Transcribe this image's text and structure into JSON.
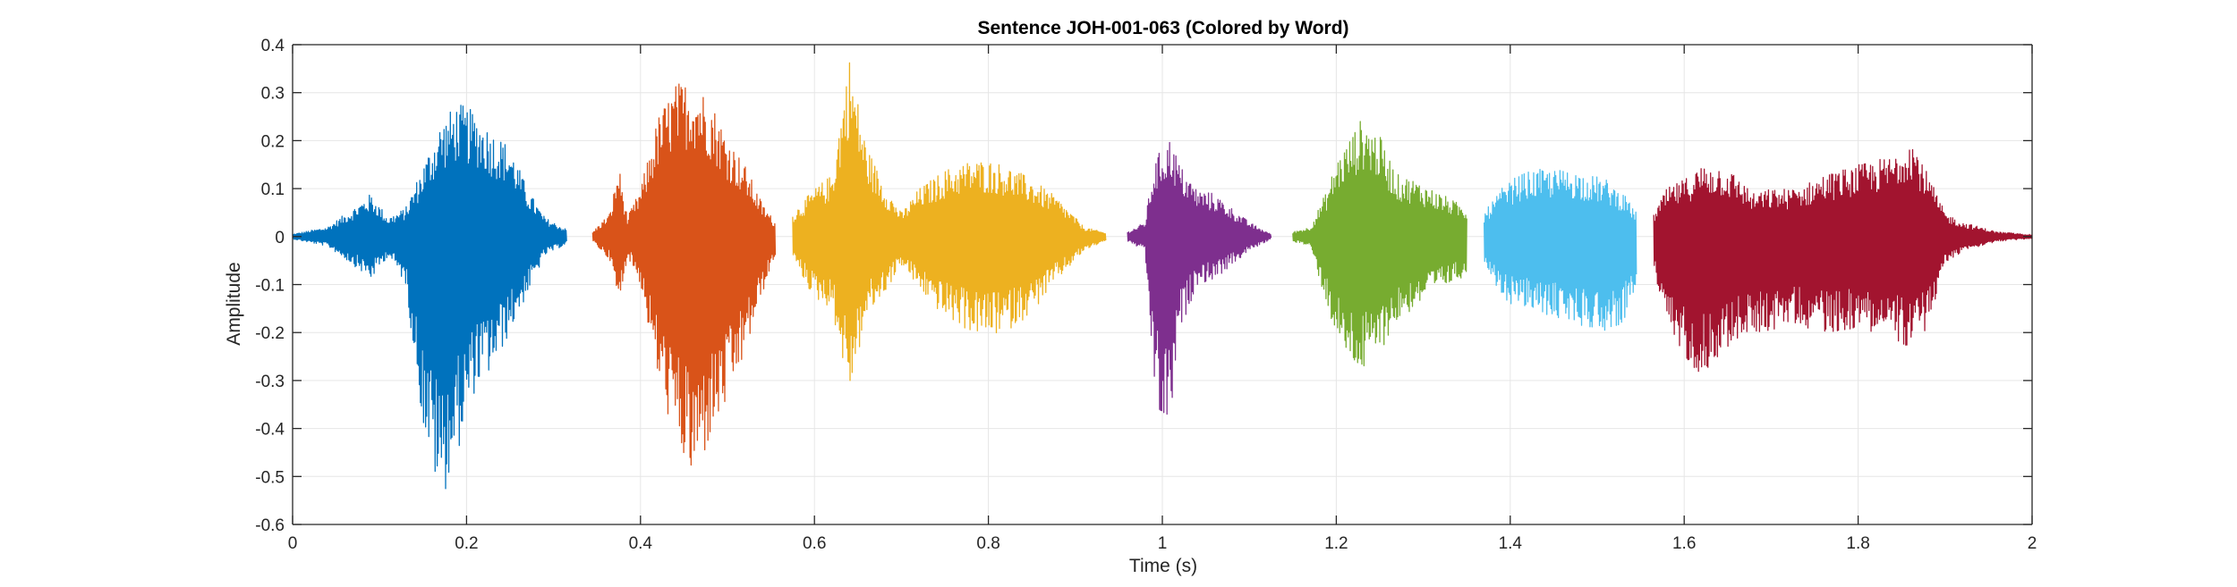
{
  "chart_data": {
    "type": "line",
    "title": "Sentence JOH-001-063 (Colored by Word)",
    "xlabel": "Time (s)",
    "ylabel": "Amplitude",
    "xlim": [
      0,
      2
    ],
    "ylim": [
      -0.6,
      0.4
    ],
    "xticks": [
      0,
      0.2,
      0.4,
      0.6,
      0.8,
      1,
      1.2,
      1.4,
      1.6,
      1.8,
      2
    ],
    "xtick_labels": [
      "0",
      "0.2",
      "0.4",
      "0.6",
      "0.8",
      "1",
      "1.2",
      "1.4",
      "1.6",
      "1.8",
      "2"
    ],
    "yticks": [
      -0.6,
      -0.5,
      -0.4,
      -0.3,
      -0.2,
      -0.1,
      0,
      0.1,
      0.2,
      0.3,
      0.4
    ],
    "ytick_labels": [
      "-0.6",
      "-0.5",
      "-0.4",
      "-0.3",
      "-0.2",
      "-0.1",
      "0",
      "0.1",
      "0.2",
      "0.3",
      "0.4"
    ],
    "grid": true,
    "legend": "none",
    "series": [
      {
        "color": "#0072BD",
        "x": [
          0.0,
          0.04,
          0.07,
          0.09,
          0.11,
          0.13,
          0.15,
          0.17,
          0.19,
          0.21,
          0.23,
          0.25,
          0.27,
          0.29,
          0.315
        ],
        "ymax": [
          0.005,
          0.02,
          0.06,
          0.09,
          0.04,
          0.06,
          0.15,
          0.24,
          0.28,
          0.26,
          0.22,
          0.19,
          0.1,
          0.04,
          0.015
        ],
        "ymin": [
          -0.005,
          -0.02,
          -0.06,
          -0.09,
          -0.04,
          -0.1,
          -0.4,
          -0.56,
          -0.45,
          -0.32,
          -0.28,
          -0.2,
          -0.12,
          -0.04,
          -0.015
        ]
      },
      {
        "color": "#D95319",
        "x": [
          0.345,
          0.365,
          0.375,
          0.385,
          0.4,
          0.42,
          0.44,
          0.46,
          0.48,
          0.5,
          0.52,
          0.54,
          0.555
        ],
        "ymax": [
          0.01,
          0.05,
          0.15,
          0.04,
          0.1,
          0.25,
          0.32,
          0.33,
          0.29,
          0.21,
          0.15,
          0.07,
          0.03
        ],
        "ymin": [
          -0.01,
          -0.05,
          -0.15,
          -0.04,
          -0.1,
          -0.3,
          -0.43,
          -0.52,
          -0.43,
          -0.35,
          -0.25,
          -0.12,
          -0.04
        ]
      },
      {
        "color": "#EDB120",
        "x": [
          0.575,
          0.6,
          0.62,
          0.64,
          0.66,
          0.68,
          0.7,
          0.72,
          0.75,
          0.78,
          0.8,
          0.82,
          0.85,
          0.88,
          0.91,
          0.935
        ],
        "ymax": [
          0.05,
          0.1,
          0.13,
          0.38,
          0.19,
          0.11,
          0.05,
          0.1,
          0.14,
          0.16,
          0.16,
          0.15,
          0.12,
          0.08,
          0.02,
          0.008
        ],
        "ymin": [
          -0.05,
          -0.13,
          -0.15,
          -0.33,
          -0.17,
          -0.12,
          -0.06,
          -0.11,
          -0.17,
          -0.2,
          -0.21,
          -0.2,
          -0.16,
          -0.09,
          -0.03,
          -0.008
        ]
      },
      {
        "color": "#7E2F8E",
        "x": [
          0.96,
          0.98,
          0.99,
          1.0,
          1.01,
          1.02,
          1.04,
          1.06,
          1.08,
          1.1,
          1.125
        ],
        "ymax": [
          0.01,
          0.03,
          0.15,
          0.19,
          0.21,
          0.15,
          0.1,
          0.09,
          0.06,
          0.03,
          0.005
        ],
        "ymin": [
          -0.01,
          -0.03,
          -0.3,
          -0.42,
          -0.38,
          -0.2,
          -0.1,
          -0.09,
          -0.06,
          -0.03,
          -0.005
        ]
      },
      {
        "color": "#77AC30",
        "x": [
          1.15,
          1.17,
          1.19,
          1.2,
          1.21,
          1.23,
          1.25,
          1.27,
          1.29,
          1.31,
          1.33,
          1.35
        ],
        "ymax": [
          0.01,
          0.02,
          0.1,
          0.16,
          0.19,
          0.25,
          0.21,
          0.13,
          0.12,
          0.1,
          0.08,
          0.06
        ],
        "ymin": [
          -0.01,
          -0.02,
          -0.15,
          -0.21,
          -0.25,
          -0.29,
          -0.24,
          -0.18,
          -0.15,
          -0.12,
          -0.1,
          -0.08
        ]
      },
      {
        "color": "#4DBEEE",
        "x": [
          1.37,
          1.39,
          1.41,
          1.43,
          1.45,
          1.47,
          1.49,
          1.51,
          1.53,
          1.545
        ],
        "ymax": [
          0.05,
          0.1,
          0.13,
          0.14,
          0.14,
          0.14,
          0.13,
          0.12,
          0.09,
          0.05
        ],
        "ymin": [
          -0.07,
          -0.13,
          -0.15,
          -0.16,
          -0.17,
          -0.18,
          -0.19,
          -0.2,
          -0.18,
          -0.1
        ]
      },
      {
        "color": "#A2142F",
        "x": [
          1.565,
          1.58,
          1.6,
          1.62,
          1.64,
          1.66,
          1.68,
          1.7,
          1.72,
          1.74,
          1.76,
          1.78,
          1.8,
          1.82,
          1.84,
          1.86,
          1.88,
          1.9,
          1.92,
          1.96,
          2.0
        ],
        "ymax": [
          0.05,
          0.1,
          0.12,
          0.15,
          0.15,
          0.13,
          0.09,
          0.1,
          0.1,
          0.11,
          0.13,
          0.14,
          0.15,
          0.16,
          0.17,
          0.22,
          0.13,
          0.05,
          0.03,
          0.01,
          0.004
        ],
        "ymin": [
          -0.07,
          -0.2,
          -0.25,
          -0.29,
          -0.25,
          -0.22,
          -0.2,
          -0.2,
          -0.18,
          -0.19,
          -0.2,
          -0.2,
          -0.19,
          -0.2,
          -0.21,
          -0.24,
          -0.19,
          -0.06,
          -0.03,
          -0.01,
          -0.004
        ]
      }
    ]
  },
  "colors": {
    "axis": "#262626",
    "grid": "#e6e6e6",
    "background": "#ffffff"
  }
}
